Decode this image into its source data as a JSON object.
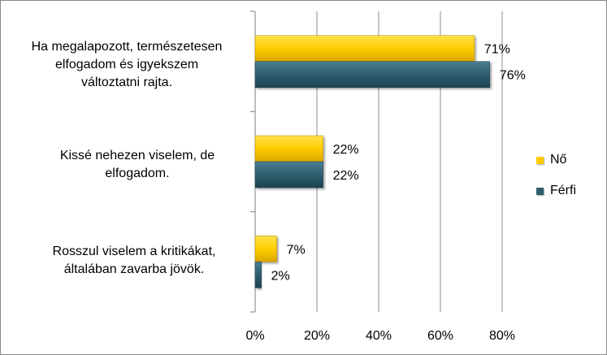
{
  "chart_data": {
    "type": "bar",
    "orientation": "horizontal",
    "categories": [
      "Ha megalapozott, természetesen\nelfogadom és igyekszem\nváltoztatni rajta.",
      "Kissé nehezen viselem, de\nelfogadom.",
      "Rosszul viselem a kritikákat,\náltalában zavarba jövök."
    ],
    "series": [
      {
        "name": "Nő",
        "values": [
          71,
          22,
          7
        ],
        "labels": [
          "71%",
          "22%",
          "7%"
        ],
        "color": "#FFCC00"
      },
      {
        "name": "Férfi",
        "values": [
          76,
          22,
          2
        ],
        "labels": [
          "76%",
          "22%",
          "2%"
        ],
        "color": "#2E5E6E"
      }
    ],
    "xlim": [
      0,
      80
    ],
    "xticks": [
      "0%",
      "20%",
      "40%",
      "60%",
      "80%"
    ],
    "xtick_values": [
      0,
      20,
      40,
      60,
      80
    ],
    "grid": true,
    "legend": "right"
  }
}
